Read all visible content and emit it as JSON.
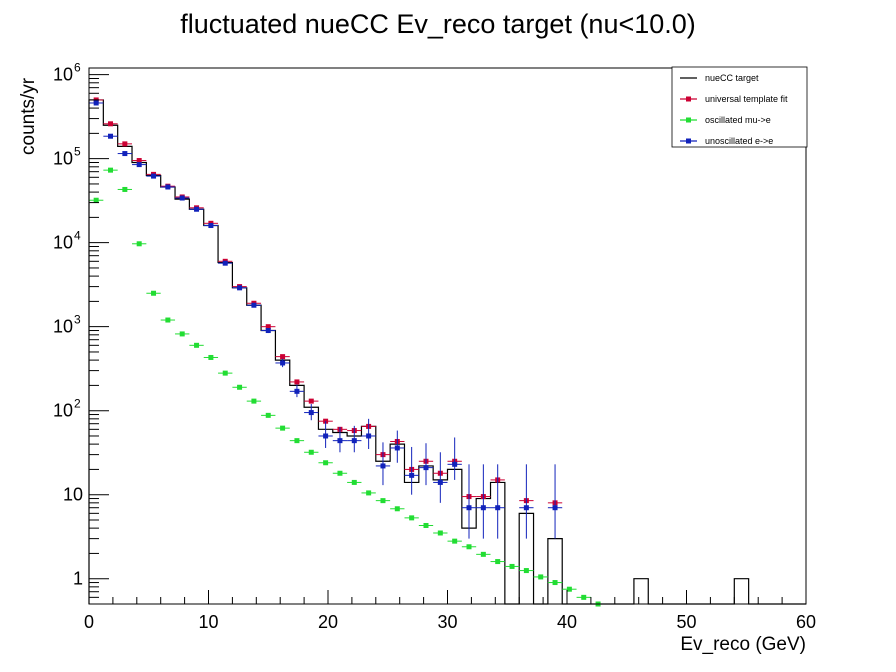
{
  "chart_data": {
    "type": "scatter",
    "title": "fluctuated nueCC Ev_reco target (nu<10.0)",
    "xlabel": "Ev_reco (GeV)",
    "ylabel": "counts/yr",
    "xlim": [
      0,
      60
    ],
    "ylim": [
      0.5,
      1200000
    ],
    "yscale": "log",
    "x_ticks": [
      "0",
      "10",
      "20",
      "30",
      "40",
      "50",
      "60"
    ],
    "y_ticks": [
      {
        "base": "1",
        "exp": ""
      },
      {
        "base": "10",
        "exp": ""
      },
      {
        "base": "10",
        "exp": "2"
      },
      {
        "base": "10",
        "exp": "3"
      },
      {
        "base": "10",
        "exp": "4"
      },
      {
        "base": "10",
        "exp": "5"
      },
      {
        "base": "10",
        "exp": "6"
      }
    ],
    "legend_position": "top-right",
    "bin_width": 1.2,
    "series": [
      {
        "name": "nueCC target",
        "style": "histogram",
        "color": "#000000",
        "x": [
          0.6,
          1.8,
          3.0,
          4.2,
          5.4,
          6.6,
          7.8,
          9.0,
          10.2,
          11.4,
          12.6,
          13.8,
          15.0,
          16.2,
          17.4,
          18.6,
          19.8,
          21.0,
          22.2,
          23.4,
          24.6,
          25.8,
          27.0,
          28.2,
          29.4,
          30.6,
          31.8,
          33.0,
          34.2,
          35.4,
          36.6,
          37.8,
          39.0,
          40.2,
          41.4,
          42.6,
          43.8,
          45.0,
          46.2,
          47.4,
          48.6,
          49.8,
          51.0,
          52.2,
          53.4,
          54.6,
          55.8,
          57.0,
          58.2,
          59.4
        ],
        "y": [
          500000,
          250000,
          140000,
          90000,
          63000,
          46000,
          33000,
          25000,
          16000,
          5800,
          2900,
          1800,
          900,
          400,
          200,
          110,
          60,
          55,
          50,
          65,
          25,
          40,
          14,
          22,
          15,
          20,
          4,
          9,
          14,
          0,
          6,
          0,
          3,
          0,
          0,
          0,
          0,
          0,
          1,
          0,
          0,
          0,
          0,
          0,
          0,
          1,
          0,
          0,
          0,
          0
        ]
      },
      {
        "name": "universal template fit",
        "style": "markers",
        "color": "#cc0033",
        "x": [
          0.6,
          1.8,
          3.0,
          4.2,
          5.4,
          6.6,
          7.8,
          9.0,
          10.2,
          11.4,
          12.6,
          13.8,
          15.0,
          16.2,
          17.4,
          18.6,
          19.8,
          21.0,
          22.2,
          23.4,
          24.6,
          25.8,
          27.0,
          28.2,
          29.4,
          30.6,
          31.8,
          33.0,
          34.2,
          36.6,
          39.0
        ],
        "y": [
          500000,
          260000,
          150000,
          95000,
          65000,
          47000,
          35000,
          26000,
          17000,
          6000,
          3000,
          1900,
          1000,
          440,
          220,
          130,
          75,
          60,
          58,
          65,
          30,
          43,
          20,
          25,
          18,
          25,
          9.5,
          9.5,
          15,
          8.5,
          8
        ],
        "err": [
          0,
          0,
          0,
          0,
          0,
          0,
          0,
          0,
          0,
          0,
          0,
          0,
          0,
          0,
          0,
          0,
          0,
          0,
          0,
          0,
          0,
          0,
          0,
          0,
          0,
          0,
          0,
          0,
          0,
          0,
          0
        ]
      },
      {
        "name": "oscillated mu->e",
        "style": "markers",
        "color": "#22dd33",
        "x": [
          0.6,
          1.8,
          3.0,
          4.2,
          5.4,
          6.6,
          7.8,
          9.0,
          10.2,
          11.4,
          12.6,
          13.8,
          15.0,
          16.2,
          17.4,
          18.6,
          19.8,
          21.0,
          22.2,
          23.4,
          24.6,
          25.8,
          27.0,
          28.2,
          29.4,
          30.6,
          31.8,
          33.0,
          34.2,
          35.4,
          36.6,
          37.8,
          39.0,
          40.2,
          41.4,
          42.6
        ],
        "y": [
          32000,
          73000,
          43000,
          9700,
          2500,
          1200,
          820,
          600,
          430,
          280,
          190,
          130,
          88,
          62,
          44,
          32,
          24,
          18,
          14,
          10.5,
          8.5,
          6.8,
          5.3,
          4.3,
          3.5,
          2.8,
          2.4,
          1.95,
          1.6,
          1.4,
          1.25,
          1.05,
          0.9,
          0.75,
          0.6,
          0.5
        ],
        "err": [
          0,
          0,
          0,
          0,
          0,
          0,
          0,
          0,
          0,
          0,
          0,
          0,
          0,
          0,
          0,
          0,
          0,
          0,
          0,
          0,
          0,
          0,
          0,
          0,
          0,
          0,
          0,
          0,
          0,
          0,
          0,
          0,
          0,
          0,
          0,
          0
        ]
      },
      {
        "name": "unoscillated e->e",
        "style": "markers",
        "color": "#1122bb",
        "x": [
          0.6,
          1.8,
          3.0,
          4.2,
          5.4,
          6.6,
          7.8,
          9.0,
          10.2,
          11.4,
          12.6,
          13.8,
          15.0,
          16.2,
          17.4,
          18.6,
          19.8,
          21.0,
          22.2,
          23.4,
          24.6,
          25.8,
          27.0,
          28.2,
          29.4,
          30.6,
          31.8,
          33.0,
          34.2,
          36.6,
          39.0
        ],
        "y": [
          460000,
          185000,
          115000,
          85000,
          62000,
          46000,
          34000,
          25000,
          16000,
          5700,
          2900,
          1800,
          900,
          370,
          170,
          95,
          50,
          44,
          44,
          50,
          22,
          36,
          17,
          21,
          14,
          23,
          7,
          7,
          7,
          7,
          7
        ],
        "err_low": [
          0,
          0,
          0,
          0,
          0,
          0,
          0,
          0,
          0,
          0,
          0,
          0,
          60,
          40,
          25,
          18,
          14,
          12,
          12,
          15,
          9,
          12,
          7,
          8,
          6,
          8,
          4,
          4,
          4,
          4,
          4
        ],
        "err_high": [
          0,
          0,
          0,
          0,
          0,
          0,
          0,
          0,
          0,
          0,
          0,
          0,
          60,
          45,
          35,
          25,
          25,
          20,
          22,
          30,
          20,
          22,
          20,
          20,
          18,
          25,
          16,
          16,
          16,
          16,
          16
        ]
      }
    ]
  }
}
